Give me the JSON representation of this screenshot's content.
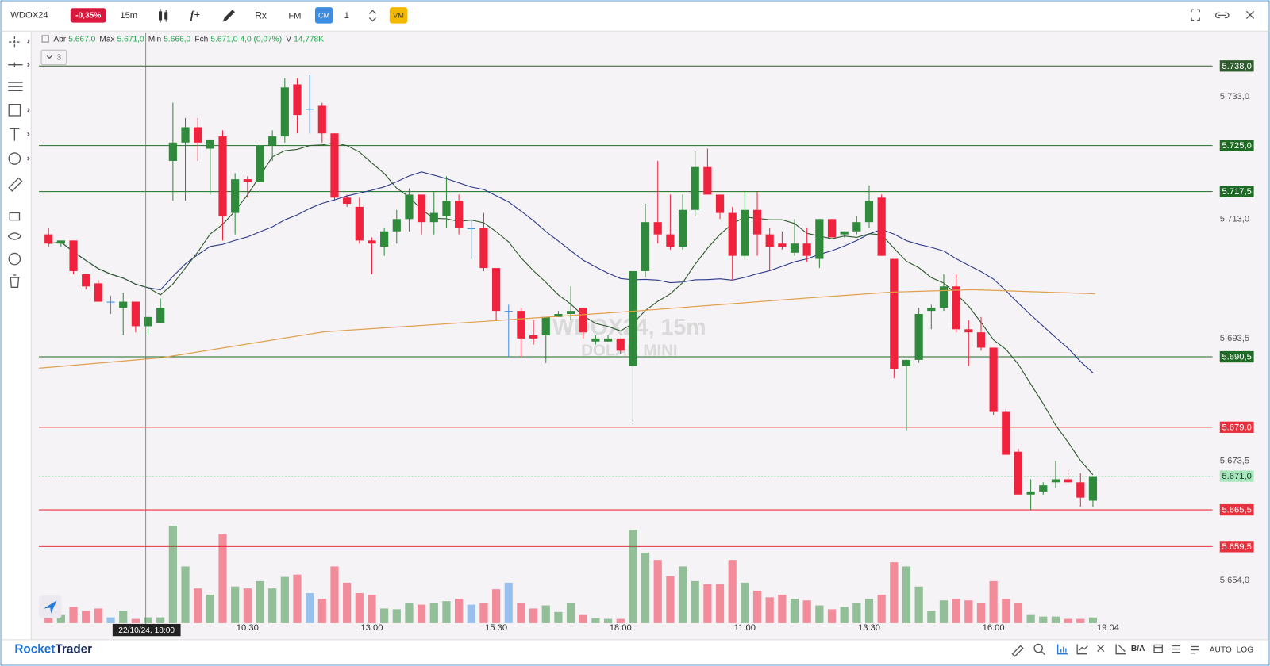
{
  "toolbar": {
    "symbol": "WDOX24",
    "change": "-0,35%",
    "timeframe": "15m",
    "indicators": "f+",
    "replay": "Rx",
    "fm": "FM",
    "cm": "CM",
    "quantity": "1",
    "vm": "VM"
  },
  "legend": {
    "collapse": "3",
    "items": [
      {
        "label": "Abr",
        "value": "5.667,0"
      },
      {
        "label": "Máx",
        "value": "5.671,0"
      },
      {
        "label": "Min",
        "value": "5.666,0"
      },
      {
        "label": "Fch",
        "value": "5.671,0"
      }
    ],
    "change": "4,0 (0,07%)",
    "volume_label": "V",
    "volume_value": "14,778K"
  },
  "watermark": {
    "title": "WDOX24, 15m",
    "subtitle": "DOLAR MINI"
  },
  "chart_data": {
    "type": "candlestick",
    "categories": [
      null,
      null,
      null,
      null,
      null,
      null,
      null,
      null,
      null,
      null,
      null,
      null,
      null,
      null,
      null,
      null,
      "10:30",
      null,
      null,
      null,
      null,
      null,
      null,
      null,
      null,
      null,
      "13:00",
      null,
      null,
      null,
      null,
      null,
      null,
      null,
      null,
      null,
      "15:30",
      null,
      null,
      null,
      null,
      null,
      null,
      null,
      null,
      null,
      "18:00",
      null,
      null,
      null,
      null,
      null,
      null,
      null,
      null,
      null,
      "11:00",
      null,
      null,
      null,
      null,
      null,
      null,
      null,
      null,
      null,
      "13:30",
      null,
      null,
      null,
      null,
      null,
      null,
      null,
      null,
      null,
      "16:00",
      null,
      null,
      null,
      null,
      null,
      null,
      null,
      null
    ],
    "open": [
      5710.5,
      5709,
      5709.5,
      5704,
      5702.5,
      5699.5,
      5698.5,
      5699.5,
      5695.5,
      5696,
      5722.5,
      5725.5,
      5728,
      5724.5,
      5726.5,
      5714,
      5719.5,
      5719,
      5725,
      5726.5,
      5735,
      5731,
      5731.5,
      5727,
      5716.5,
      5715,
      5709.5,
      5708.5,
      5711,
      5713,
      5717,
      5712.5,
      5713.5,
      5716,
      5711.5,
      5711.5,
      5705,
      5698,
      5698,
      5694,
      5694,
      5697,
      5697.5,
      5698.5,
      5693,
      5693,
      5693.5,
      5689,
      5704.5,
      5712.5,
      5710.5,
      5708.5,
      5714.5,
      5721.5,
      5717,
      5714,
      5707,
      5714.5,
      5710.5,
      5709,
      5707.5,
      5709,
      5706.5,
      5713,
      5710.5,
      5711,
      5712.5,
      5716.5,
      5706.5,
      5689,
      5690,
      5698,
      5698.5,
      5702,
      5695,
      5694.5,
      5692,
      5681.5,
      5675,
      5668,
      5668.5,
      5670,
      5670.5,
      5670,
      5667
    ],
    "high": [
      5711.5,
      5709.5,
      5709.5,
      5704,
      5703,
      5700.5,
      5701,
      5699.5,
      5697,
      5700,
      5732,
      5729.5,
      5729.5,
      5726,
      5727.5,
      5720.5,
      5720,
      5725.5,
      5727.5,
      5736,
      5736,
      5736.5,
      5732,
      5727,
      5717,
      5716.5,
      5710,
      5711.5,
      5714.5,
      5718,
      5717,
      5717.5,
      5720,
      5717,
      5713,
      5714,
      5705,
      5699,
      5698.5,
      5696.5,
      5697,
      5698,
      5702,
      5698.5,
      5694,
      5694,
      5693.5,
      5704.5,
      5715.5,
      5722.5,
      5717,
      5717,
      5724,
      5724.5,
      5717,
      5715,
      5717.5,
      5717.5,
      5711.5,
      5711,
      5713,
      5711.5,
      5713,
      5713,
      5711,
      5713.5,
      5718.5,
      5717,
      5706.5,
      5690,
      5698.5,
      5699,
      5704,
      5704,
      5696.5,
      5697,
      5692,
      5682,
      5675.5,
      5670.5,
      5670,
      5673.5,
      5672,
      5671.5,
      5671
    ],
    "low": [
      5708.5,
      5708.5,
      5704,
      5701.5,
      5699.5,
      5697.5,
      5694,
      5694.5,
      5694,
      5696,
      5716,
      5716,
      5722.5,
      5717,
      5709.5,
      5710.5,
      5716.5,
      5717,
      5722.5,
      5725.5,
      5727,
      5727,
      5725.5,
      5716,
      5715,
      5709,
      5704,
      5707,
      5709,
      5711,
      5710.5,
      5710.5,
      5711.5,
      5710.5,
      5706.5,
      5704.5,
      5696.5,
      5690.5,
      5690.5,
      5692.5,
      5689.5,
      5697,
      5696.5,
      5693.5,
      5692.5,
      5693,
      5691,
      5679.5,
      5703.5,
      5709,
      5708,
      5708,
      5713.5,
      5717,
      5713,
      5703,
      5706.5,
      5707,
      5704.5,
      5708,
      5707,
      5706,
      5705,
      5710,
      5710,
      5710.5,
      5711.5,
      5707,
      5687,
      5678.5,
      5689.5,
      5695,
      5698,
      5694.5,
      5689,
      5691.5,
      5681,
      5674.5,
      5668,
      5665.5,
      5668,
      5669,
      5670,
      5666,
      5666
    ],
    "close": [
      5709,
      5709.5,
      5704.5,
      5702,
      5699.5,
      5699.5,
      5699.5,
      5695.5,
      5697,
      5698.5,
      5725.5,
      5728,
      5725.5,
      5726,
      5713.5,
      5719.5,
      5719,
      5725,
      5726.5,
      5734.5,
      5730,
      5731,
      5727,
      5716.5,
      5715.5,
      5709.5,
      5709,
      5711,
      5713,
      5717,
      5712.5,
      5714,
      5716,
      5711.5,
      5711.5,
      5705,
      5698,
      5698,
      5693.5,
      5693.5,
      5697,
      5697.5,
      5698,
      5694.5,
      5693.5,
      5693.5,
      5691.5,
      5704.5,
      5712.5,
      5710.5,
      5708.5,
      5714.5,
      5721.5,
      5717,
      5714,
      5707,
      5714.5,
      5710.5,
      5708.5,
      5708.5,
      5709,
      5707,
      5713,
      5710,
      5711,
      5712.5,
      5716,
      5707,
      5688.5,
      5690,
      5697.5,
      5698.5,
      5702,
      5695,
      5694.5,
      5692,
      5681.5,
      5674.5,
      5668,
      5668.5,
      5669.5,
      5670.5,
      5670,
      5667.5,
      5671
    ],
    "volume": [
      15,
      21,
      42,
      32,
      38,
      15,
      32,
      11,
      15,
      15,
      252,
      147,
      90,
      74,
      231,
      95,
      90,
      109,
      90,
      120,
      126,
      78,
      63,
      147,
      105,
      78,
      74,
      38,
      36,
      53,
      48,
      53,
      57,
      63,
      48,
      53,
      88,
      105,
      53,
      38,
      46,
      29,
      53,
      21,
      13,
      11,
      11,
      242,
      183,
      164,
      122,
      147,
      109,
      101,
      101,
      164,
      105,
      84,
      67,
      74,
      63,
      59,
      46,
      36,
      42,
      53,
      63,
      74,
      158,
      147,
      95,
      32,
      59,
      63,
      59,
      53,
      109,
      63,
      53,
      21,
      17,
      17,
      11,
      11,
      14.778
    ],
    "ylim": [
      5647,
      5743.5
    ],
    "yticks": [
      {
        "value": 5733,
        "label": "5.733,0"
      },
      {
        "value": 5713,
        "label": "5.713,0"
      },
      {
        "value": 5693.5,
        "label": "5.693,5"
      },
      {
        "value": 5673.5,
        "label": "5.673,5"
      },
      {
        "value": 5654,
        "label": "5.654,0"
      }
    ],
    "levels": [
      {
        "value": 5738,
        "label": "5.738,0",
        "color": "#2e5a2e",
        "text_color": "#ffffff"
      },
      {
        "value": 5725,
        "label": "5.725,0",
        "color": "#1f6a24",
        "text_color": "#ffffff"
      },
      {
        "value": 5717.5,
        "label": "5.717,5",
        "color": "#1f6a24",
        "text_color": "#ffffff"
      },
      {
        "value": 5690.5,
        "label": "5.690,5",
        "color": "#1f6a24",
        "text_color": "#ffffff"
      },
      {
        "value": 5679,
        "label": "5.679,0",
        "color": "#e8313f",
        "text_color": "#ffffff"
      },
      {
        "value": 5671,
        "label": "5.671,0",
        "color": "#a6e6bd",
        "text_color": "#1d3b25",
        "dashed": true
      },
      {
        "value": 5665.5,
        "label": "5.665,5",
        "color": "#e8313f",
        "text_color": "#ffffff"
      },
      {
        "value": 5659.5,
        "label": "5.659,5",
        "color": "#e8313f",
        "text_color": "#ffffff"
      }
    ],
    "colors": {
      "up": "#2f8a3b",
      "down": "#f0233f",
      "doji": "#3b8fe5"
    },
    "crosshair_label": "22/10/24, 18:00",
    "time_label": "19:04"
  },
  "footer": {
    "brand": [
      "Rocket",
      "Trader"
    ],
    "bid_ask": "B/A",
    "auto": "AUTO",
    "log": "LOG"
  }
}
